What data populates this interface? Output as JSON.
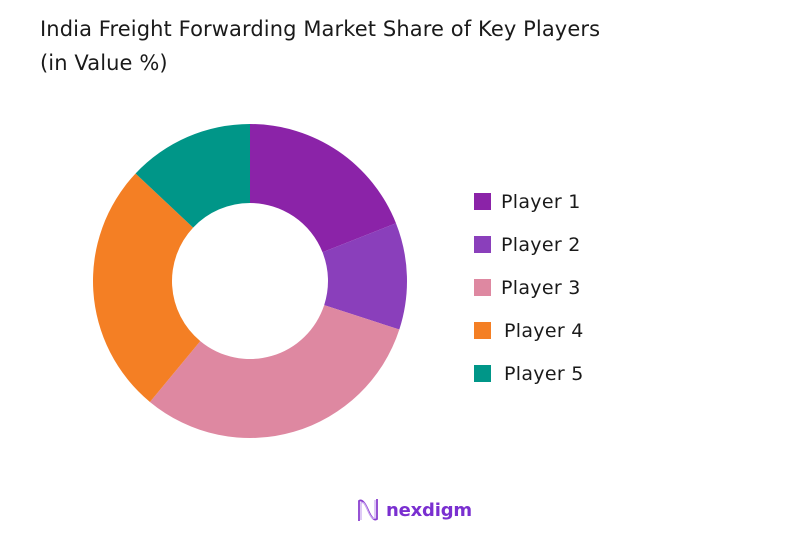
{
  "header": {
    "title_line1": "India Freight Forwarding Market Share of Key Players",
    "title_line2": "(in Value %)"
  },
  "legend": {
    "items": [
      {
        "label": "Player 1",
        "color": "#8B23A8"
      },
      {
        "label": "Player 2",
        "color": "#8A3FBB"
      },
      {
        "label": "Player 3",
        "color": "#DE88A1"
      },
      {
        "label": "Player 4",
        "color": "#F47F24"
      },
      {
        "label": "Player 5",
        "color": "#009688"
      }
    ]
  },
  "logo": {
    "text": "nexdigm",
    "icon": "nexdigm-wave-icon"
  },
  "chart_data": {
    "type": "pie",
    "subtype": "donut",
    "title": "India Freight Forwarding Market Share of Key Players (in Value %)",
    "categories": [
      "Player 1",
      "Player 2",
      "Player 3",
      "Player 4",
      "Player 5"
    ],
    "values": [
      19,
      11,
      31,
      26,
      13
    ],
    "colors": [
      "#8B23A8",
      "#8A3FBB",
      "#DE88A1",
      "#F47F24",
      "#009688"
    ],
    "start_angle": "12 o'clock, clockwise",
    "legend_position": "right",
    "data_labels": false
  }
}
